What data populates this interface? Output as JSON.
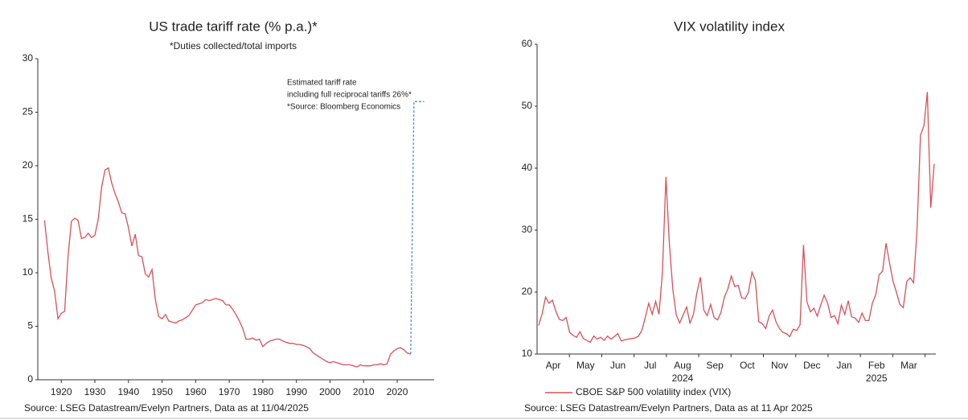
{
  "chart_data": [
    {
      "type": "line",
      "title": "US trade tariff rate (% p.a.)*",
      "subtitle": "*Duties collected/total imports",
      "annotations": [
        "Estimated tariff rate",
        "including full reciprocal tariffs 26%*",
        "*Source: Bloomberg Economics"
      ],
      "source": "Source: LSEG Datastream/Evelyn Partners, Data as at 11/04/2025",
      "xlim": [
        1913,
        2031
      ],
      "xticks": [
        1920,
        1930,
        1940,
        1950,
        1960,
        1970,
        1980,
        1990,
        2000,
        2010,
        2020
      ],
      "ylim": [
        0,
        30
      ],
      "yticks": [
        0,
        5,
        10,
        15,
        20,
        25,
        30
      ],
      "series": [
        {
          "color": "#d9505b",
          "dashed": false,
          "x": [
            1915,
            1916,
            1917,
            1918,
            1919,
            1920,
            1921,
            1922,
            1923,
            1924,
            1925,
            1926,
            1927,
            1928,
            1929,
            1930,
            1931,
            1932,
            1933,
            1934,
            1935,
            1936,
            1937,
            1938,
            1939,
            1940,
            1941,
            1942,
            1943,
            1944,
            1945,
            1946,
            1947,
            1948,
            1949,
            1950,
            1951,
            1952,
            1953,
            1954,
            1955,
            1956,
            1957,
            1958,
            1959,
            1960,
            1961,
            1962,
            1963,
            1964,
            1965,
            1966,
            1967,
            1968,
            1969,
            1970,
            1971,
            1972,
            1973,
            1974,
            1975,
            1976,
            1977,
            1978,
            1979,
            1980,
            1981,
            1982,
            1983,
            1984,
            1985,
            1986,
            1987,
            1988,
            1989,
            1990,
            1991,
            1992,
            1993,
            1994,
            1995,
            1996,
            1997,
            1998,
            1999,
            2000,
            2001,
            2002,
            2003,
            2004,
            2005,
            2006,
            2007,
            2008,
            2009,
            2010,
            2011,
            2012,
            2013,
            2014,
            2015,
            2016,
            2017,
            2018,
            2019,
            2020,
            2021,
            2022,
            2023,
            2024
          ],
          "values": [
            14.9,
            12,
            9.5,
            8.3,
            5.7,
            6.2,
            6.4,
            11.5,
            14.8,
            15.1,
            14.9,
            13.2,
            13.3,
            13.7,
            13.3,
            13.5,
            15,
            18,
            19.6,
            19.8,
            18.4,
            17.4,
            16.6,
            15.6,
            15.5,
            14.2,
            12.5,
            13.6,
            11.6,
            11.5,
            9.9,
            9.6,
            10.3,
            7.5,
            5.9,
            5.7,
            6.1,
            5.5,
            5.4,
            5.3,
            5.5,
            5.6,
            5.8,
            6,
            6.5,
            7,
            7.1,
            7.2,
            7.5,
            7.4,
            7.5,
            7.6,
            7.5,
            7.4,
            7,
            7,
            6.6,
            6.1,
            5.5,
            4.8,
            3.8,
            3.8,
            3.9,
            3.7,
            3.8,
            3.1,
            3.4,
            3.6,
            3.7,
            3.8,
            3.8,
            3.6,
            3.5,
            3.4,
            3.4,
            3.3,
            3.3,
            3.2,
            3.1,
            2.9,
            2.5,
            2.3,
            2.1,
            1.9,
            1.7,
            1.6,
            1.7,
            1.6,
            1.5,
            1.4,
            1.4,
            1.4,
            1.3,
            1.2,
            1.4,
            1.3,
            1.3,
            1.3,
            1.4,
            1.4,
            1.5,
            1.4,
            1.5,
            2.4,
            2.7,
            2.9,
            3,
            2.8,
            2.5,
            2.4
          ]
        },
        {
          "color": "#4a90d9",
          "dashed": true,
          "x": [
            2024,
            2025,
            2028
          ],
          "values": [
            2.4,
            26,
            26
          ]
        }
      ]
    },
    {
      "type": "line",
      "title": "VIX volatility index",
      "source": "Source: LSEG Datastream/Evelyn Partners, Data as at 11 Apr 2025",
      "xtick_labels": [
        "Apr",
        "May",
        "Jun",
        "Jul",
        "Aug",
        "Sep",
        "Oct",
        "Nov",
        "Dec",
        "Jan",
        "Feb",
        "Mar"
      ],
      "year_labels": [
        "2024",
        "2025"
      ],
      "ylim": [
        10,
        60
      ],
      "yticks": [
        10,
        20,
        30,
        40,
        50,
        60
      ],
      "legend": "bottom-left",
      "series": [
        {
          "name": "CBOE S&P 500 volatility index (VIX)",
          "color": "#d9505b",
          "values": [
            14.6,
            16.5,
            19.2,
            18.2,
            18.7,
            16.9,
            15.6,
            15.4,
            15.9,
            13.5,
            13,
            12.7,
            13.6,
            12.5,
            12.2,
            11.9,
            12.9,
            12.4,
            12.7,
            12.2,
            12.9,
            12.4,
            12.8,
            13.3,
            12.1,
            12.3,
            12.4,
            12.5,
            12.6,
            12.9,
            13.8,
            15.9,
            18.2,
            16.4,
            18.5,
            16.4,
            23.4,
            38.6,
            27.7,
            20.4,
            16.3,
            15,
            16.3,
            17.6,
            15,
            16.4,
            19.9,
            22.4,
            17.1,
            16.2,
            18,
            15.9,
            15.5,
            16.7,
            19.2,
            20.5,
            22.6,
            20.9,
            21.1,
            19.1,
            18.9,
            20,
            23.2,
            21.9,
            15.2,
            14.9,
            14.1,
            16.1,
            17.1,
            15.2,
            14.1,
            13.5,
            13.3,
            12.8,
            14,
            13.8,
            14.7,
            27.6,
            18.4,
            16.8,
            17.4,
            16.1,
            17.9,
            19.5,
            18.2,
            15.9,
            16.2,
            14.9,
            17.9,
            16.4,
            18.6,
            16,
            15.8,
            15.1,
            16.6,
            15.4,
            15.4,
            18.2,
            19.6,
            22.8,
            23.4,
            27.9,
            24.7,
            21.8,
            20,
            18,
            17.5,
            21.7,
            22.3,
            21.5,
            30,
            45.3,
            46.9,
            52.3,
            33.6,
            40.7
          ]
        }
      ]
    }
  ]
}
